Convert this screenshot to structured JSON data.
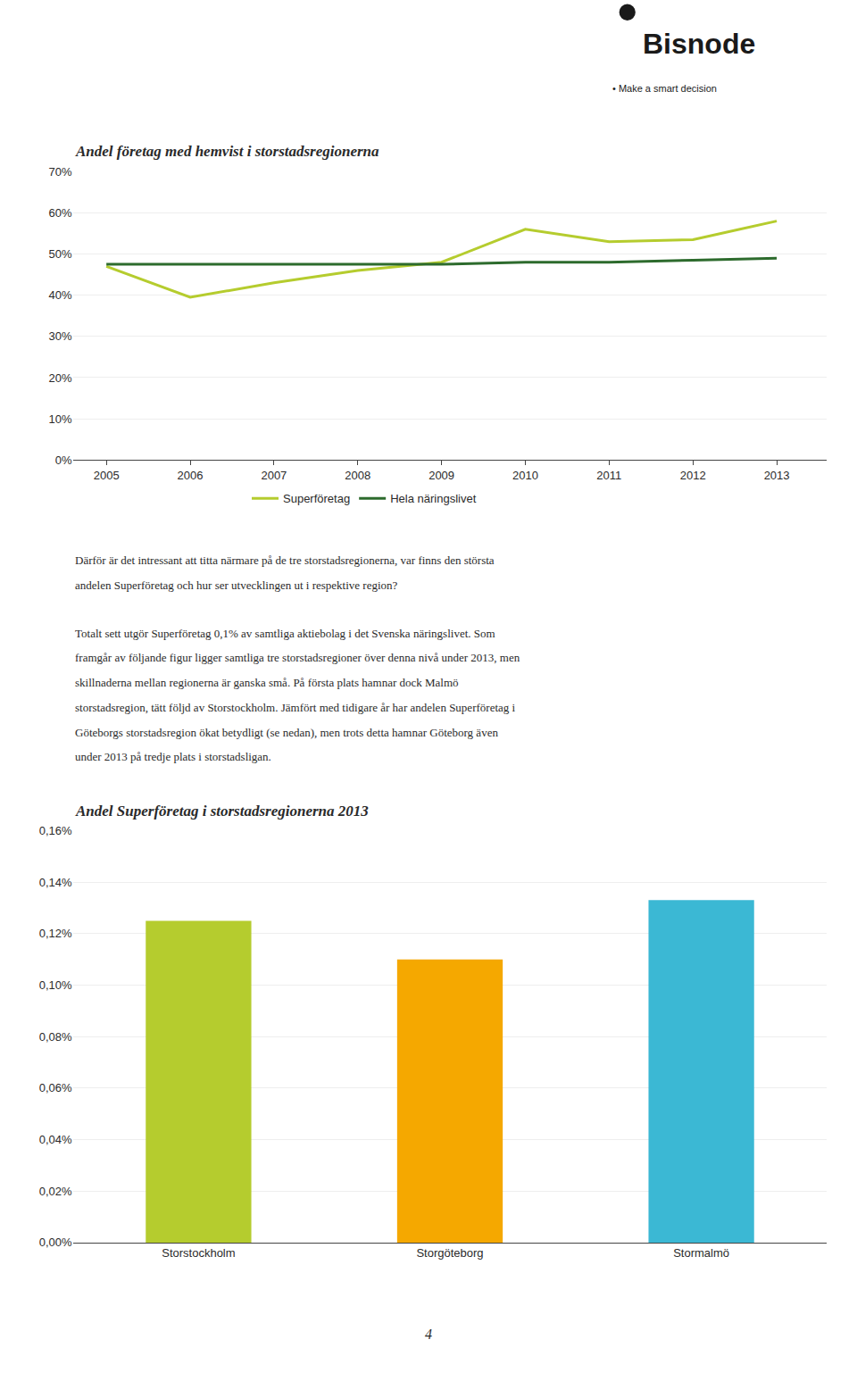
{
  "chart_data": [
    {
      "type": "line",
      "title": "Andel företag med hemvist i storstadsregionerna",
      "x": [
        2005,
        2006,
        2007,
        2008,
        2009,
        2010,
        2011,
        2012,
        2013
      ],
      "series": [
        {
          "name": "Superföretag",
          "color": "#b5cc2e",
          "values": [
            47,
            39.5,
            43,
            46,
            48,
            56,
            53,
            53.5,
            58
          ]
        },
        {
          "name": "Hela näringslivet",
          "color": "#2d6b2d",
          "values": [
            47.5,
            47.5,
            47.5,
            47.5,
            47.5,
            48,
            48,
            48.5,
            49
          ]
        }
      ],
      "xlim": [
        2004.6,
        2013.6
      ],
      "xticks": [
        2005,
        2006,
        2007,
        2008,
        2009,
        2010,
        2011,
        2012,
        2013
      ],
      "ylim": [
        0,
        70
      ],
      "yticks": [
        {
          "value": 0,
          "label": "0%"
        },
        {
          "value": 10,
          "label": "10%"
        },
        {
          "value": 20,
          "label": "20%"
        },
        {
          "value": 30,
          "label": "30%"
        },
        {
          "value": 40,
          "label": "40%"
        },
        {
          "value": 50,
          "label": "50%"
        },
        {
          "value": 60,
          "label": "60%"
        },
        {
          "value": 70,
          "label": "70%"
        }
      ],
      "grid": "y",
      "legend": "bottom"
    },
    {
      "type": "bar",
      "title": "Andel Superföretag i storstadsregionerna 2013",
      "categories": [
        "Storstockholm",
        "Storgöteborg",
        "Stormalmö"
      ],
      "values": [
        0.00125,
        0.0011,
        0.00133
      ],
      "colors": [
        "#b5cc2e",
        "#f5a800",
        "#3bb8d4"
      ],
      "ylim": [
        0,
        0.0016
      ],
      "yticks": [
        {
          "value": 0.0,
          "label": "0,00%"
        },
        {
          "value": 0.0002,
          "label": "0,02%"
        },
        {
          "value": 0.0004,
          "label": "0,04%"
        },
        {
          "value": 0.0006,
          "label": "0,06%"
        },
        {
          "value": 0.0008,
          "label": "0,08%"
        },
        {
          "value": 0.001,
          "label": "0,10%"
        },
        {
          "value": 0.0012,
          "label": "0,12%"
        },
        {
          "value": 0.0014,
          "label": "0,14%"
        },
        {
          "value": 0.0016,
          "label": "0,16%"
        }
      ],
      "grid": "y"
    }
  ],
  "logo": "Bisnode",
  "tagline": "• Make a smart decision",
  "paragraphs": [
    [
      "Därför är det intressant att titta närmare på de tre storstadsregionerna, var finns den största",
      "andelen Superföretag och hur ser utvecklingen ut i respektive region?"
    ],
    [
      "Totalt sett utgör Superföretag 0,1% av samtliga aktiebolag i det Svenska näringslivet. Som",
      "framgår av följande figur ligger samtliga tre storstadsregioner över denna nivå under 2013, men",
      "skillnaderna mellan regionerna är ganska små. På första plats hamnar dock Malmö",
      "storstadsregion, tätt följd av Storstockholm. Jämfört med tidigare år har andelen Superföretag i",
      "Göteborgs storstadsregion ökat betydligt (se nedan), men trots detta hamnar Göteborg även",
      "under 2013 på tredje plats i storstadsligan."
    ]
  ],
  "page_number": "4"
}
